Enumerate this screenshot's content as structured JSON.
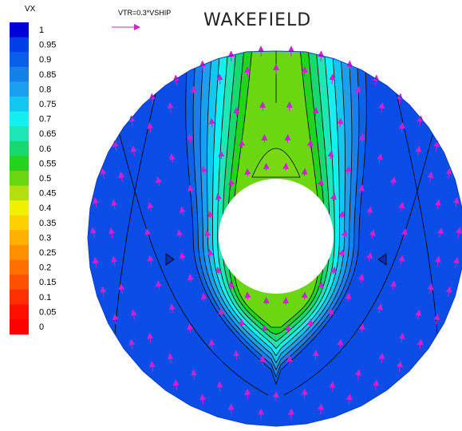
{
  "chart_data": {
    "type": "heatmap",
    "title": "WAKEFIELD",
    "legend_title": "VX",
    "vector_scale_label": "VTR=0.3*VSHIP",
    "legend_levels": [
      "1",
      "0.95",
      "0.9",
      "0.85",
      "0.8",
      "0.75",
      "0.7",
      "0.65",
      "0.6",
      "0.55",
      "0.5",
      "0.45",
      "0.4",
      "0.35",
      "0.3",
      "0.25",
      "0.2",
      "0.15",
      "0.1",
      "0.05",
      "0"
    ],
    "legend_colors": [
      "#0000d8",
      "#0040e8",
      "#0a5fe8",
      "#1481e8",
      "#1aa0ee",
      "#12c8f0",
      "#14f0f0",
      "#1ee6b4",
      "#18d870",
      "#22d41c",
      "#6ad810",
      "#b4e010",
      "#f0f000",
      "#ffd000",
      "#ffb000",
      "#ff9000",
      "#ff7000",
      "#ff5000",
      "#ff3000",
      "#ff1000",
      "#ff0000"
    ],
    "contour_bands": [
      {
        "level": "0.95",
        "color": "#0a4ce6"
      },
      {
        "level": "0.9",
        "color": "#0d63e6"
      },
      {
        "level": "0.85",
        "color": "#1b7fea"
      },
      {
        "level": "0.8",
        "color": "#1aa0ee"
      },
      {
        "level": "0.75",
        "color": "#12c8f0"
      },
      {
        "level": "0.7",
        "color": "#14f0f0"
      },
      {
        "level": "0.65",
        "color": "#1ee6b4"
      },
      {
        "level": "0.6",
        "color": "#18d870"
      },
      {
        "level": "0.55",
        "color": "#22d41c"
      },
      {
        "level": "0.5",
        "color": "#6ad810"
      }
    ],
    "vector_color": "#d020d0",
    "outline_color": "#000000"
  }
}
